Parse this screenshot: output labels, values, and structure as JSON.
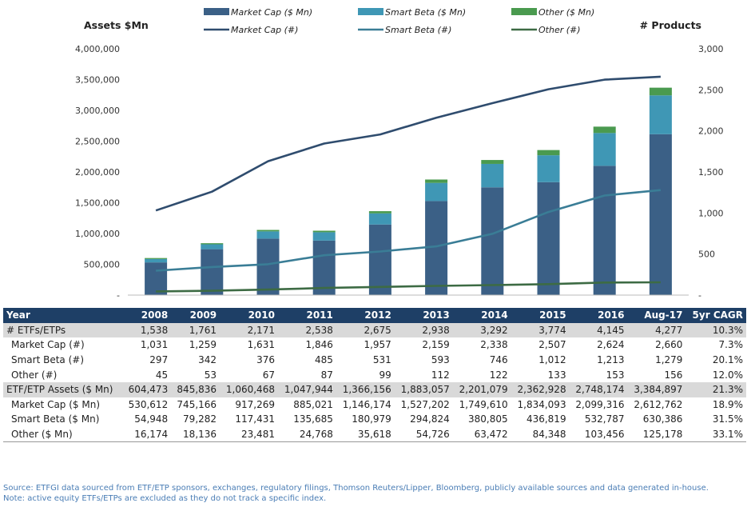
{
  "chart_data": {
    "type": "bar",
    "stacked": true,
    "combo": "stacked bar + lines on secondary axis",
    "categories": [
      "2008",
      "2009",
      "2010",
      "2011",
      "2012",
      "2013",
      "2014",
      "2015",
      "2016",
      "Aug-17"
    ],
    "y_left_label": "Assets $Mn",
    "y_right_label": "# Products",
    "ylim_left": [
      0,
      4000000
    ],
    "ylim_right": [
      0,
      3000
    ],
    "y_left_ticks": [
      "-",
      "500,000",
      "1,000,000",
      "1,500,000",
      "2,000,000",
      "2,500,000",
      "3,000,000",
      "3,500,000",
      "4,000,000"
    ],
    "y_right_ticks": [
      "-",
      "500",
      "1,000",
      "1,500",
      "2,000",
      "2,500",
      "3,000"
    ],
    "bar_series": [
      {
        "name": "Market Cap ($ Mn)",
        "color": "#3b6086",
        "values": [
          530612,
          745166,
          917269,
          885021,
          1146174,
          1527202,
          1749610,
          1834093,
          2099316,
          2612762
        ]
      },
      {
        "name": "Smart Beta ($ Mn)",
        "color": "#3f97b5",
        "values": [
          54948,
          79282,
          117431,
          135685,
          180979,
          294824,
          380805,
          436819,
          532787,
          630386
        ]
      },
      {
        "name": "Other ($ Mn)",
        "color": "#4a9a4f",
        "values": [
          16174,
          18136,
          23481,
          24768,
          35618,
          54726,
          63472,
          84348,
          103456,
          125178
        ]
      }
    ],
    "line_series": [
      {
        "name": "Market Cap (#)",
        "color": "#2f4c6e",
        "values": [
          1031,
          1259,
          1631,
          1846,
          1957,
          2159,
          2338,
          2507,
          2624,
          2660
        ]
      },
      {
        "name": "Smart Beta (#)",
        "color": "#3a7d96",
        "values": [
          297,
          342,
          376,
          485,
          531,
          593,
          746,
          1012,
          1213,
          1279
        ]
      },
      {
        "name": "Other (#)",
        "color": "#3d6b44",
        "values": [
          45,
          53,
          67,
          87,
          99,
          112,
          122,
          133,
          153,
          156
        ]
      }
    ],
    "legend": [
      {
        "label": "Market Cap ($ Mn)",
        "kind": "bar",
        "color": "#3b6086"
      },
      {
        "label": "Smart Beta ($ Mn)",
        "kind": "bar",
        "color": "#3f97b5"
      },
      {
        "label": "Other ($ Mn)",
        "kind": "bar",
        "color": "#4a9a4f"
      },
      {
        "label": "Market Cap (#)",
        "kind": "line",
        "color": "#2f4c6e"
      },
      {
        "label": "Smart Beta (#)",
        "kind": "line",
        "color": "#3a7d96"
      },
      {
        "label": "Other (#)",
        "kind": "line",
        "color": "#3d6b44"
      }
    ],
    "legend_position": "top",
    "grid": false
  },
  "table": {
    "headers": [
      "Year",
      "2008",
      "2009",
      "2010",
      "2011",
      "2012",
      "2013",
      "2014",
      "2015",
      "2016",
      "Aug-17",
      "5yr CAGR"
    ],
    "rows": [
      {
        "style": "group",
        "cells": [
          "# ETFs/ETPs",
          "1,538",
          "1,761",
          "2,171",
          "2,538",
          "2,675",
          "2,938",
          "3,292",
          "3,774",
          "4,145",
          "4,277",
          "10.3%"
        ]
      },
      {
        "style": "sub",
        "cells": [
          "Market Cap (#)",
          "1,031",
          "1,259",
          "1,631",
          "1,846",
          "1,957",
          "2,159",
          "2,338",
          "2,507",
          "2,624",
          "2,660",
          "7.3%"
        ]
      },
      {
        "style": "sub",
        "cells": [
          "Smart Beta (#)",
          "297",
          "342",
          "376",
          "485",
          "531",
          "593",
          "746",
          "1,012",
          "1,213",
          "1,279",
          "20.1%"
        ]
      },
      {
        "style": "sub",
        "cells": [
          "Other (#)",
          "45",
          "53",
          "67",
          "87",
          "99",
          "112",
          "122",
          "133",
          "153",
          "156",
          "12.0%"
        ]
      },
      {
        "style": "group",
        "cells": [
          "ETF/ETP Assets ($ Mn)",
          "604,473",
          "845,836",
          "1,060,468",
          "1,047,944",
          "1,366,156",
          "1,883,057",
          "2,201,079",
          "2,362,928",
          "2,748,174",
          "3,384,897",
          "21.3%"
        ]
      },
      {
        "style": "sub",
        "cells": [
          "Market Cap ($ Mn)",
          "530,612",
          "745,166",
          "917,269",
          "885,021",
          "1,146,174",
          "1,527,202",
          "1,749,610",
          "1,834,093",
          "2,099,316",
          "2,612,762",
          "18.9%"
        ]
      },
      {
        "style": "sub",
        "cells": [
          "Smart Beta ($ Mn)",
          "54,948",
          "79,282",
          "117,431",
          "135,685",
          "180,979",
          "294,824",
          "380,805",
          "436,819",
          "532,787",
          "630,386",
          "31.5%"
        ]
      },
      {
        "style": "sub last",
        "cells": [
          "Other ($ Mn)",
          "16,174",
          "18,136",
          "23,481",
          "24,768",
          "35,618",
          "54,726",
          "63,472",
          "84,348",
          "103,456",
          "125,178",
          "33.1%"
        ]
      }
    ]
  },
  "footer": {
    "source": "Source: ETFGI data sourced from ETF/ETP sponsors, exchanges, regulatory filings, Thomson Reuters/Lipper, Bloomberg, publicly available sources and data generated in-house.",
    "note": "Note: active equity ETFs/ETPs are excluded as they do not track a specific index."
  }
}
